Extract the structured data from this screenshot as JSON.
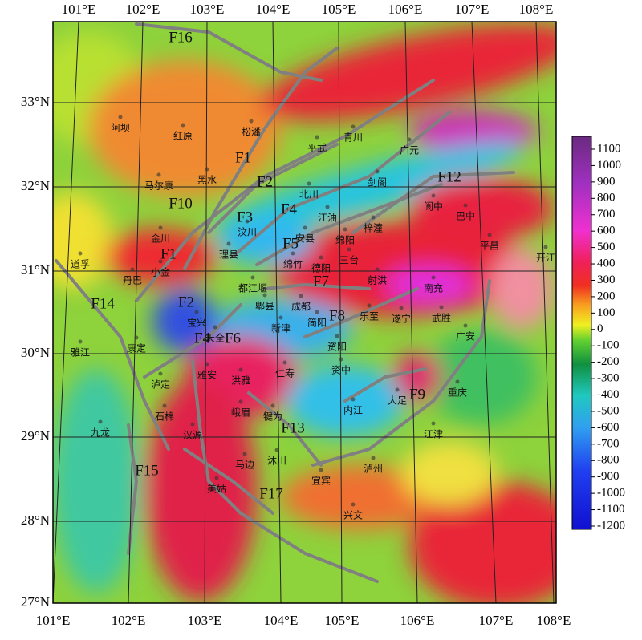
{
  "lat_labels": [
    "33°N",
    "32°N",
    "31°N",
    "30°N",
    "29°N",
    "28°N",
    "27°N"
  ],
  "lon_labels_top": [
    "101°E",
    "102°E",
    "103°E",
    "104°E",
    "105°E",
    "106°E",
    "107°E",
    "108°E"
  ],
  "lon_labels_bottom": [
    "101°E",
    "102°E",
    "103°E",
    "104°E",
    "105°E",
    "106°E",
    "107°E",
    "108°E"
  ],
  "fault_labels": [
    "F16",
    "F1",
    "F2",
    "F10",
    "F3",
    "F4",
    "F5",
    "F1",
    "F7",
    "F14",
    "F2",
    "F8",
    "F4",
    "F6",
    "F12",
    "F9",
    "F13",
    "F15",
    "F17"
  ],
  "places": [
    "阿坝",
    "红原",
    "松潘",
    "平武",
    "青川",
    "广元",
    "黑水",
    "马尔康",
    "北川",
    "剑阁",
    "阆中",
    "巴中",
    "汶川",
    "江油",
    "梓潼",
    "绵阳",
    "安县",
    "金川",
    "理县",
    "小金",
    "丹巴",
    "道孚",
    "绵竹",
    "德阳",
    "三台",
    "平昌",
    "开江",
    "射洪",
    "遂宁",
    "南充",
    "都江堰",
    "郫县",
    "成都",
    "乐至",
    "武胜",
    "广安",
    "新津",
    "简阳",
    "资阳",
    "宝兴",
    "康定",
    "雅江",
    "天全",
    "泸定",
    "雅安",
    "洪雅",
    "仁寿",
    "资中",
    "内江",
    "大足",
    "重庆",
    "石棉",
    "峨眉",
    "犍为",
    "九龙",
    "汉源",
    "江津",
    "沐川",
    "马边",
    "泸州",
    "宜宾",
    "美姑",
    "兴文"
  ],
  "colorbar": {
    "ticks": [
      1100,
      1000,
      900,
      800,
      700,
      600,
      500,
      400,
      300,
      200,
      100,
      0,
      -100,
      -200,
      -300,
      -400,
      -500,
      -600,
      -700,
      -800,
      -900,
      -1000,
      -1100,
      -1200
    ]
  }
}
